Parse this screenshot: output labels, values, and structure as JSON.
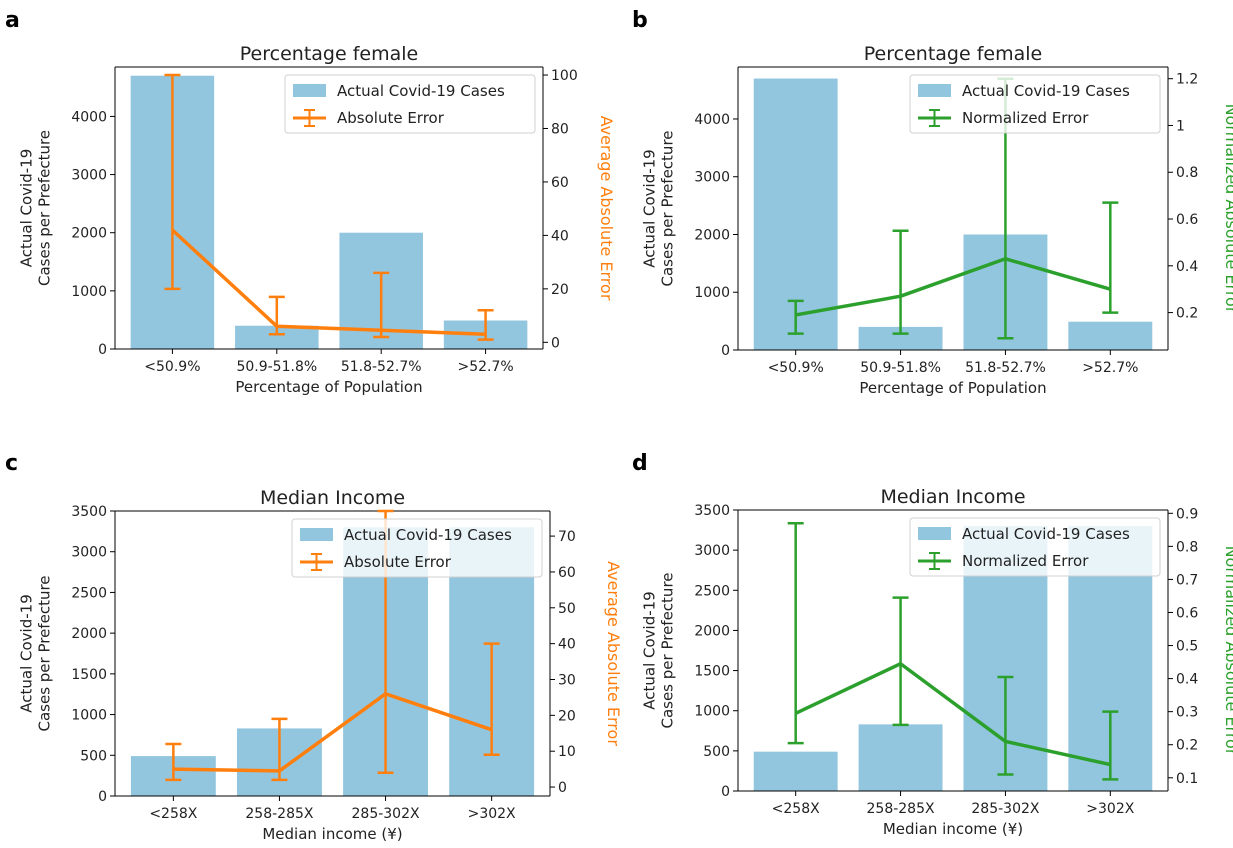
{
  "chart_data": [
    {
      "panel": "a",
      "type": "bar",
      "title": "Percentage female",
      "xlabel": "Percentage of Population",
      "ylabel": [
        "Actual Covid-19",
        "Cases per Prefecture"
      ],
      "y2label": "Average Absolute Error",
      "categories": [
        "<50.9%",
        "50.9-51.8%",
        "51.8-52.7%",
        ">52.7%"
      ],
      "ylim": [
        0,
        4850
      ],
      "yticks": [
        0,
        1000,
        2000,
        3000,
        4000
      ],
      "y2lim": [
        -2.5,
        103
      ],
      "y2ticks": [
        0,
        20,
        40,
        60,
        80,
        100
      ],
      "bar_series": {
        "name": "Actual Covid-19 Cases",
        "values": [
          4700,
          400,
          2000,
          490
        ]
      },
      "error_series": {
        "name": "Absolute Error",
        "values": [
          42,
          6,
          4.5,
          3
        ],
        "lower": [
          20,
          3,
          2,
          1
        ],
        "upper": [
          100,
          17,
          26,
          12
        ]
      },
      "legend_position": "upper-right",
      "bar_color": "#92c5de",
      "line_color": "#ff7f0e"
    },
    {
      "panel": "b",
      "type": "bar",
      "title": "Percentage female",
      "xlabel": "Percentage of Population",
      "ylabel": [
        "Actual Covid-19",
        "Cases per Prefecture"
      ],
      "y2label": "Normalized Absolute Error",
      "categories": [
        "<50.9%",
        "50.9-51.8%",
        "51.8-52.7%",
        ">52.7%"
      ],
      "ylim": [
        0,
        4900
      ],
      "yticks": [
        0,
        1000,
        2000,
        3000,
        4000
      ],
      "y2lim": [
        0.04,
        1.25
      ],
      "y2ticks": [
        0.2,
        0.4,
        0.6,
        0.8,
        1.0,
        1.2
      ],
      "bar_series": {
        "name": "Actual Covid-19 Cases",
        "values": [
          4700,
          400,
          2000,
          490
        ]
      },
      "error_series": {
        "name": "Normalized Error",
        "values": [
          0.19,
          0.27,
          0.43,
          0.3
        ],
        "lower": [
          0.11,
          0.11,
          0.09,
          0.2
        ],
        "upper": [
          0.25,
          0.55,
          1.2,
          0.67
        ]
      },
      "legend_position": "upper-right",
      "bar_color": "#92c5de",
      "line_color": "#2ca02c"
    },
    {
      "panel": "c",
      "type": "bar",
      "title": "Median Income",
      "xlabel": "Median income (¥)",
      "ylabel": [
        "Actual Covid-19",
        "Cases per Prefecture"
      ],
      "y2label": "Average Absolute Error",
      "categories": [
        "<258X",
        "258-285X",
        "285-302X",
        ">302X"
      ],
      "ylim": [
        0,
        3500
      ],
      "yticks": [
        0,
        500,
        1000,
        1500,
        2000,
        2500,
        3000,
        3500
      ],
      "y2lim": [
        -2.5,
        77
      ],
      "y2ticks": [
        0,
        10,
        20,
        30,
        40,
        50,
        60,
        70
      ],
      "bar_series": {
        "name": "Actual Covid-19 Cases",
        "values": [
          490,
          830,
          3300,
          3300
        ]
      },
      "error_series": {
        "name": "Absolute Error",
        "values": [
          5,
          4.5,
          26,
          16
        ],
        "lower": [
          2,
          2,
          4,
          9
        ],
        "upper": [
          12,
          19,
          77,
          40
        ]
      },
      "legend_position": "upper-right",
      "bar_color": "#92c5de",
      "line_color": "#ff7f0e"
    },
    {
      "panel": "d",
      "type": "bar",
      "title": "Median Income",
      "xlabel": "Median income (¥)",
      "ylabel": [
        "Actual Covid-19",
        "Cases per Prefecture"
      ],
      "y2label": "Normalized Absolute Error",
      "categories": [
        "<258X",
        "258-285X",
        "285-302X",
        ">302X"
      ],
      "ylim": [
        0,
        3500
      ],
      "yticks": [
        0,
        500,
        1000,
        1500,
        2000,
        2500,
        3000,
        3500
      ],
      "y2lim": [
        0.06,
        0.91
      ],
      "y2ticks": [
        0.1,
        0.2,
        0.3,
        0.4,
        0.5,
        0.6,
        0.7,
        0.8,
        0.9
      ],
      "bar_series": {
        "name": "Actual Covid-19 Cases",
        "values": [
          490,
          830,
          3300,
          3300
        ]
      },
      "error_series": {
        "name": "Normalized Error",
        "values": [
          0.295,
          0.445,
          0.21,
          0.14
        ],
        "lower": [
          0.205,
          0.26,
          0.11,
          0.095
        ],
        "upper": [
          0.87,
          0.645,
          0.405,
          0.3
        ]
      },
      "legend_position": "upper-right",
      "bar_color": "#92c5de",
      "line_color": "#2ca02c"
    }
  ]
}
